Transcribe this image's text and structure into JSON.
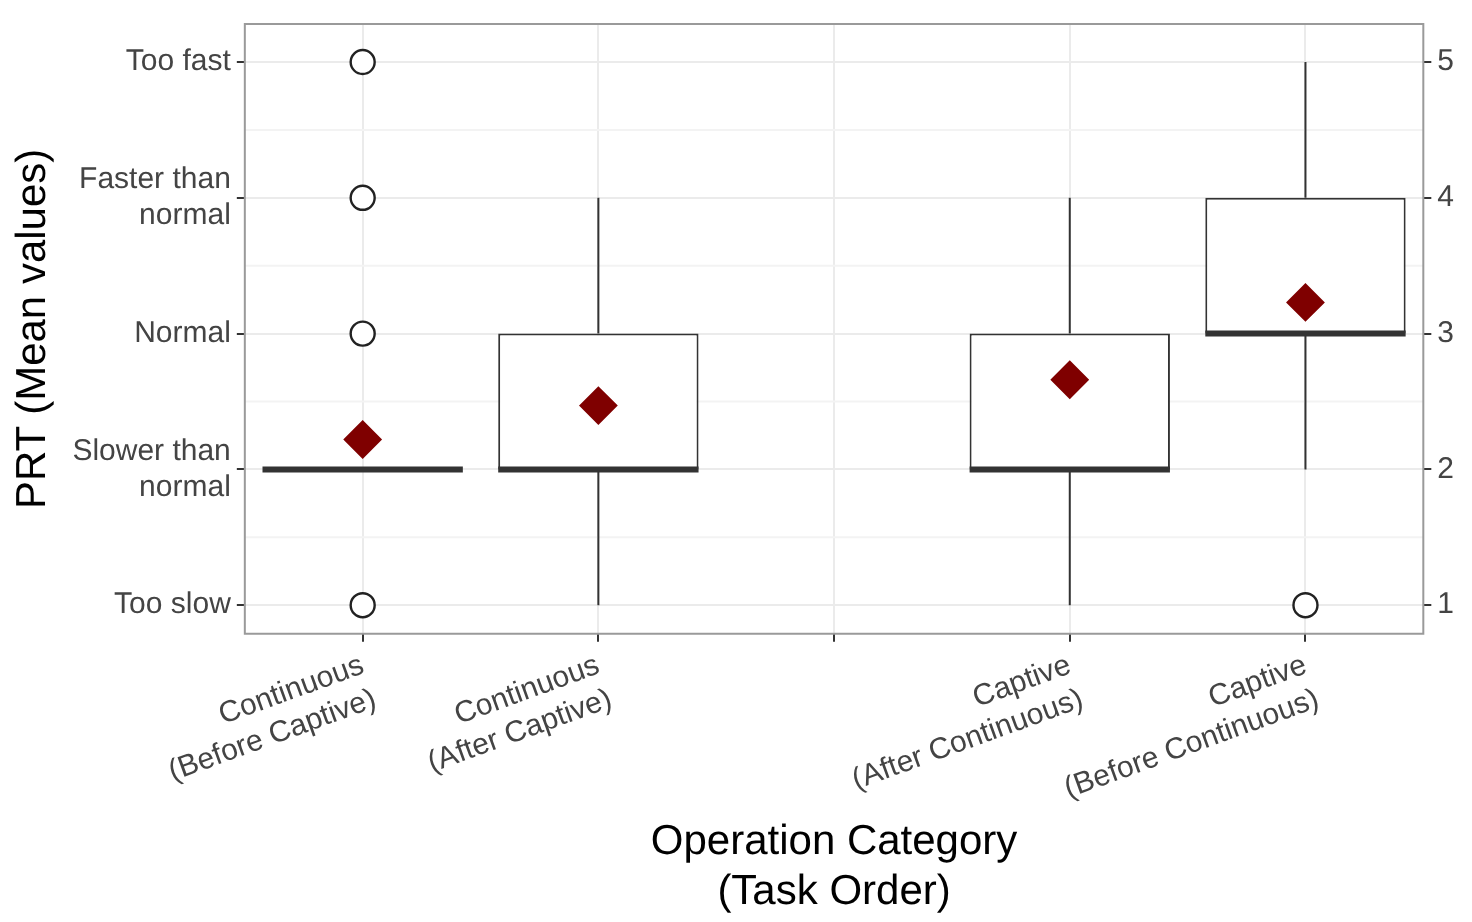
{
  "chart_data": {
    "type": "box",
    "xlabel": "Operation Category\n(Task Order)",
    "ylabel": "PRT (Mean values)",
    "categories": [
      "Continuous\n(Before Captive)",
      "Continuous\n(After Captive)",
      null,
      "Captive\n(After Continuous)",
      "Captive\n(Before Continuous)"
    ],
    "boxes": [
      {
        "low": 2,
        "q1": 2,
        "median": 2,
        "q3": 2,
        "high": 2,
        "mean": 2.22,
        "outliers": [
          1,
          3,
          4,
          5
        ]
      },
      {
        "low": 1,
        "q1": 2,
        "median": 2,
        "q3": 3,
        "high": 4,
        "mean": 2.47
      },
      null,
      {
        "low": 1,
        "q1": 2,
        "median": 2,
        "q3": 3,
        "high": 4,
        "mean": 2.66
      },
      {
        "low": 2,
        "q1": 3,
        "median": 3,
        "q3": 4,
        "high": 5,
        "mean": 3.23,
        "outliers": [
          1
        ]
      }
    ],
    "ylim": [
      0.79,
      5.28
    ],
    "yticks": [
      1,
      2,
      3,
      4,
      5
    ],
    "annotations": [
      "Too slow",
      "Slower than\nnormal",
      "Normal",
      "Faster than\nnormal",
      "Too fast"
    ],
    "grid": true,
    "legend": false
  }
}
